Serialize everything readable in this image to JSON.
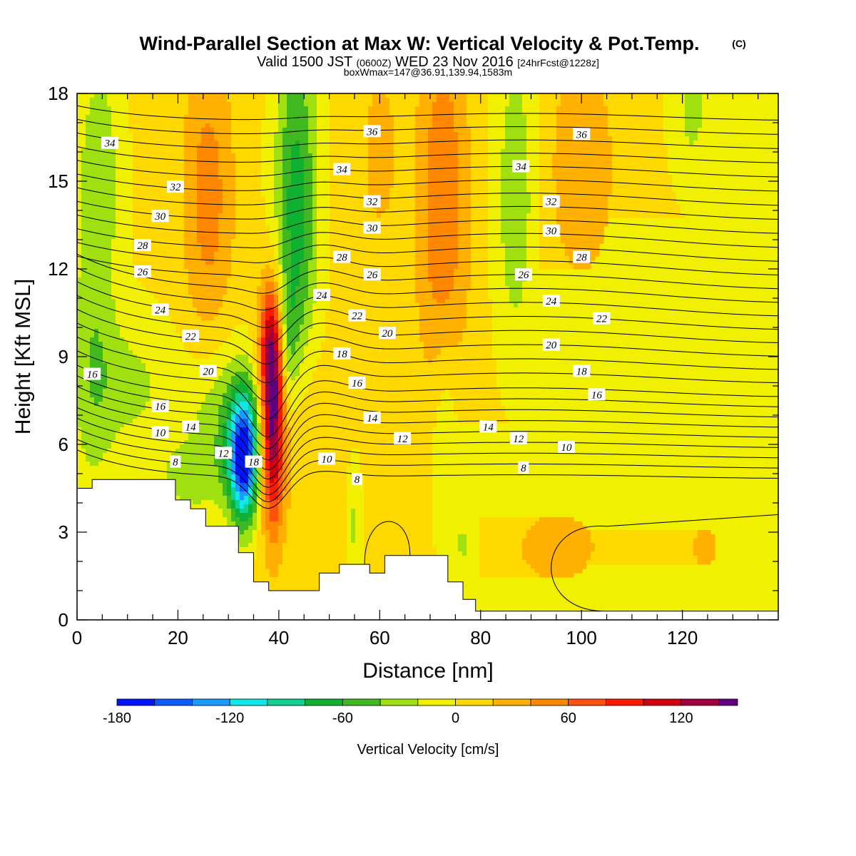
{
  "header": {
    "title": "Wind-Parallel Section at Max W: Vertical Velocity & Pot.Temp.",
    "title_mark": "(C)",
    "valid_a": "Valid 1500 JST",
    "valid_b": "(0600Z)",
    "valid_c": "WED 23 Nov 2016",
    "valid_d": "[24hrFcst@1228z]",
    "boxline": "boxWmax=147@36.91,139.94,1583m"
  },
  "chart_data": {
    "type": "contour-section",
    "xlabel": "Distance [nm]",
    "ylabel": "Height [Kft MSL]",
    "xlim": [
      0,
      139
    ],
    "ylim": [
      0,
      18
    ],
    "xticks": [
      0,
      20,
      40,
      60,
      80,
      100,
      120
    ],
    "xtick_labels": [
      "0",
      "20",
      "40",
      "60",
      "80",
      "100",
      "120"
    ],
    "yticks": [
      0,
      3,
      6,
      9,
      12,
      15,
      18
    ],
    "ytick_labels": [
      "0",
      "3",
      "6",
      "9",
      "12",
      "15",
      "18"
    ],
    "colorbar": {
      "label": "Vertical Velocity [cm/s]",
      "levels": [
        -180,
        -160,
        -140,
        -120,
        -100,
        -80,
        -60,
        -40,
        -20,
        0,
        20,
        40,
        60,
        80,
        100,
        120,
        140,
        150
      ],
      "colors": [
        "#0014ff",
        "#0a5cff",
        "#1a9cff",
        "#10e8e8",
        "#10d090",
        "#10b030",
        "#40b820",
        "#a0e010",
        "#f0f000",
        "#ffd800",
        "#ffb000",
        "#ff8800",
        "#ff5010",
        "#ff1800",
        "#d00010",
        "#a00040",
        "#600080"
      ],
      "tick_values": [
        -180,
        -120,
        -60,
        0,
        60,
        120
      ],
      "tick_labels": [
        "-180",
        "-120",
        "-60",
        "0",
        "60",
        "120"
      ]
    },
    "theta_contours": {
      "levels": [
        8,
        9,
        10,
        11,
        12,
        13,
        14,
        15,
        16,
        17,
        18,
        19,
        20,
        21,
        22,
        23,
        24,
        25,
        26,
        27,
        28,
        29,
        30,
        31,
        32,
        33,
        34,
        35,
        36
      ],
      "labels": [
        {
          "text": "34",
          "x": 6.5,
          "y": 16.3
        },
        {
          "text": "32",
          "x": 19.5,
          "y": 14.8
        },
        {
          "text": "30",
          "x": 16.5,
          "y": 13.8
        },
        {
          "text": "28",
          "x": 13,
          "y": 12.8
        },
        {
          "text": "26",
          "x": 13,
          "y": 11.9
        },
        {
          "text": "24",
          "x": 16.5,
          "y": 10.6
        },
        {
          "text": "22",
          "x": 22.5,
          "y": 9.7
        },
        {
          "text": "20",
          "x": 26,
          "y": 8.5
        },
        {
          "text": "16",
          "x": 3,
          "y": 8.4
        },
        {
          "text": "16",
          "x": 16.5,
          "y": 7.3
        },
        {
          "text": "14",
          "x": 22.5,
          "y": 6.6
        },
        {
          "text": "10",
          "x": 16.5,
          "y": 6.4
        },
        {
          "text": "12",
          "x": 29,
          "y": 5.7
        },
        {
          "text": "8",
          "x": 19.5,
          "y": 5.4
        },
        {
          "text": "18",
          "x": 35,
          "y": 5.4
        },
        {
          "text": "36",
          "x": 58.5,
          "y": 16.7
        },
        {
          "text": "34",
          "x": 52.5,
          "y": 15.4
        },
        {
          "text": "32",
          "x": 58.5,
          "y": 14.3
        },
        {
          "text": "30",
          "x": 58.5,
          "y": 13.4
        },
        {
          "text": "28",
          "x": 52.5,
          "y": 12.4
        },
        {
          "text": "26",
          "x": 58.5,
          "y": 11.8
        },
        {
          "text": "24",
          "x": 48.5,
          "y": 11.1
        },
        {
          "text": "22",
          "x": 55.5,
          "y": 10.4
        },
        {
          "text": "20",
          "x": 61.5,
          "y": 9.8
        },
        {
          "text": "18",
          "x": 52.5,
          "y": 9.1
        },
        {
          "text": "16",
          "x": 55.5,
          "y": 8.1
        },
        {
          "text": "14",
          "x": 58.5,
          "y": 6.9
        },
        {
          "text": "12",
          "x": 64.5,
          "y": 6.2
        },
        {
          "text": "10",
          "x": 49.5,
          "y": 5.5
        },
        {
          "text": "8",
          "x": 55.5,
          "y": 4.8
        },
        {
          "text": "36",
          "x": 100,
          "y": 16.6
        },
        {
          "text": "34",
          "x": 88,
          "y": 15.5
        },
        {
          "text": "32",
          "x": 94,
          "y": 14.3
        },
        {
          "text": "30",
          "x": 94,
          "y": 13.3
        },
        {
          "text": "28",
          "x": 100,
          "y": 12.4
        },
        {
          "text": "26",
          "x": 88.5,
          "y": 11.8
        },
        {
          "text": "24",
          "x": 94,
          "y": 10.9
        },
        {
          "text": "22",
          "x": 104,
          "y": 10.3
        },
        {
          "text": "20",
          "x": 94,
          "y": 9.4
        },
        {
          "text": "18",
          "x": 100,
          "y": 8.5
        },
        {
          "text": "16",
          "x": 103,
          "y": 7.7
        },
        {
          "text": "14",
          "x": 81.5,
          "y": 6.6
        },
        {
          "text": "12",
          "x": 87.5,
          "y": 6.2
        },
        {
          "text": "10",
          "x": 97,
          "y": 5.9
        },
        {
          "text": "8",
          "x": 88.5,
          "y": 5.2
        }
      ]
    },
    "terrain_kft": {
      "x": [
        0,
        3,
        3,
        19.5,
        19.5,
        22.5,
        22.5,
        25.5,
        25.5,
        32,
        32,
        35,
        35,
        38,
        38,
        42,
        42,
        48,
        48,
        52,
        52,
        55,
        55,
        58,
        58,
        61,
        61,
        67,
        67,
        73.5,
        73.5,
        76.5,
        76.5,
        79,
        79,
        81,
        81,
        139
      ],
      "y": [
        4.5,
        4.5,
        4.8,
        4.8,
        4.1,
        4.1,
        3.8,
        3.8,
        3.2,
        3.2,
        2.3,
        2.3,
        1.3,
        1.3,
        1.0,
        1.0,
        1.0,
        1.0,
        1.6,
        1.6,
        1.9,
        1.9,
        1.9,
        1.9,
        1.6,
        1.6,
        2.2,
        2.2,
        2.2,
        2.2,
        1.3,
        1.3,
        0.7,
        0.7,
        0.3,
        0.3,
        0.3,
        0.3
      ]
    }
  }
}
